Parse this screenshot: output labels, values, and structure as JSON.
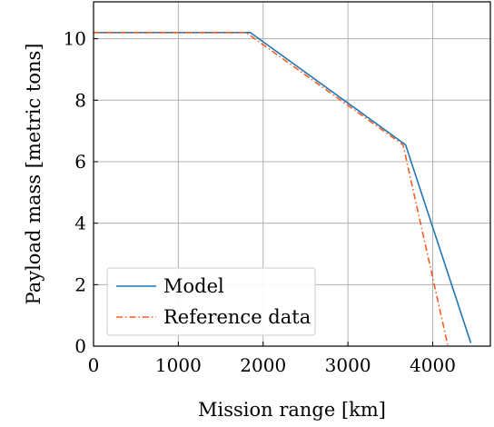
{
  "chart_data": {
    "type": "line",
    "title": "",
    "xlabel": "Mission range [km]",
    "ylabel": "Payload mass [metric tons]",
    "xlim": [
      0,
      4680
    ],
    "ylim": [
      0,
      11.2
    ],
    "xticks": [
      0,
      1000,
      2000,
      3000,
      4000
    ],
    "yticks": [
      0,
      2,
      4,
      6,
      8,
      10
    ],
    "grid": true,
    "legend_position": "bottom-left",
    "series": [
      {
        "name": "Model",
        "color": "#1f77b4",
        "style": "solid",
        "x": [
          0,
          1850,
          3680,
          4450
        ],
        "y": [
          10.2,
          10.2,
          6.55,
          0.1
        ]
      },
      {
        "name": "Reference data",
        "color": "#ff5a1f",
        "style": "dashdot",
        "x": [
          0,
          1800,
          3650,
          4180
        ],
        "y": [
          10.2,
          10.2,
          6.55,
          0
        ]
      }
    ]
  }
}
